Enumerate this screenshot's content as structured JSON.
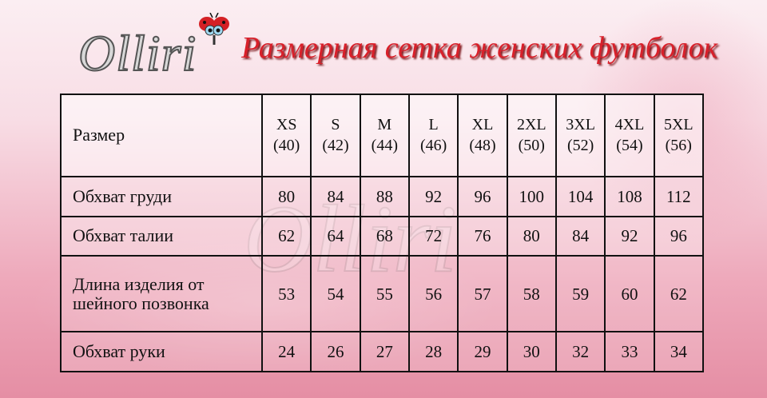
{
  "logo": {
    "text": "Olliri"
  },
  "title": "Размерная сетка женских футболок",
  "colors": {
    "title": "#d8202a",
    "border": "#111111",
    "background": "#f3c2cf"
  },
  "table": {
    "header_label": "Размер",
    "sizes": [
      {
        "name": "XS",
        "num": "(40)"
      },
      {
        "name": "S",
        "num": "(42)"
      },
      {
        "name": "M",
        "num": "(44)"
      },
      {
        "name": "L",
        "num": "(46)"
      },
      {
        "name": "XL",
        "num": "(48)"
      },
      {
        "name": "2XL",
        "num": "(50)"
      },
      {
        "name": "3XL",
        "num": "(52)"
      },
      {
        "name": "4XL",
        "num": "(54)"
      },
      {
        "name": "5XL",
        "num": "(56)"
      }
    ],
    "rows": [
      {
        "label": "Обхват груди",
        "values": [
          "80",
          "84",
          "88",
          "92",
          "96",
          "100",
          "104",
          "108",
          "112"
        ]
      },
      {
        "label": "Обхват талии",
        "values": [
          "62",
          "64",
          "68",
          "72",
          "76",
          "80",
          "84",
          "92",
          "96"
        ]
      },
      {
        "label": "Длина изделия от шейного позвонка",
        "values": [
          "53",
          "54",
          "55",
          "56",
          "57",
          "58",
          "59",
          "60",
          "62"
        ]
      },
      {
        "label": "Обхват руки",
        "values": [
          "24",
          "26",
          "27",
          "28",
          "29",
          "30",
          "32",
          "33",
          "34"
        ]
      }
    ]
  }
}
